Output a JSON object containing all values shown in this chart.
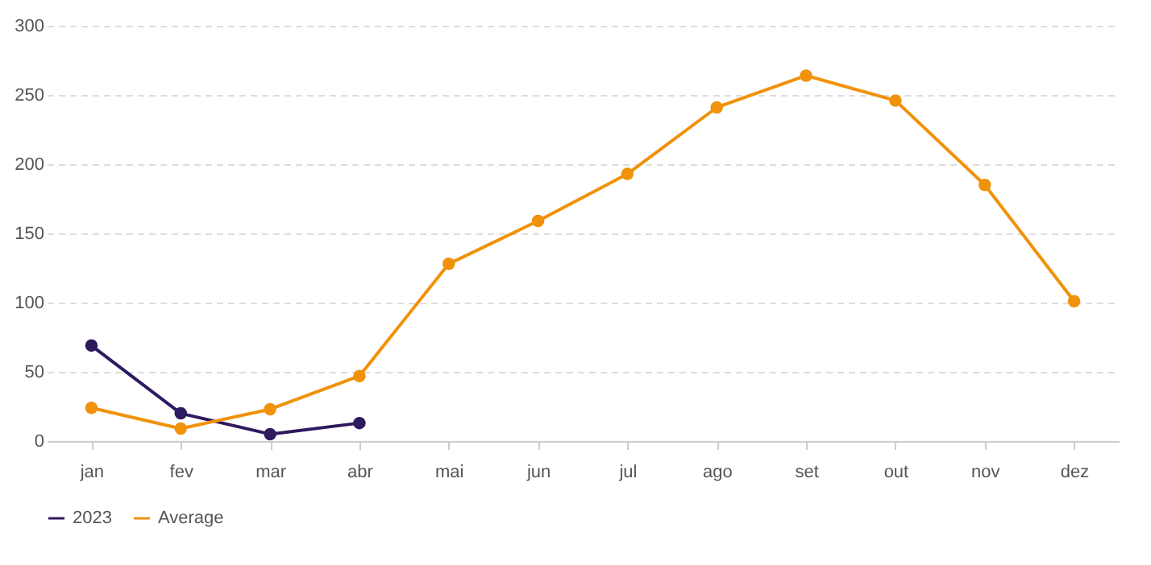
{
  "chart_data": {
    "type": "line",
    "categories": [
      "jan",
      "fev",
      "mar",
      "abr",
      "mai",
      "jun",
      "jul",
      "ago",
      "set",
      "out",
      "nov",
      "dez"
    ],
    "series": [
      {
        "name": "2023",
        "color": "#2e1a5e",
        "values": [
          69,
          20,
          5,
          13,
          null,
          null,
          null,
          null,
          null,
          null,
          null,
          null
        ]
      },
      {
        "name": "Average",
        "color": "#f0920a",
        "values": [
          24,
          9,
          23,
          47,
          128,
          159,
          193,
          241,
          264,
          246,
          185,
          101
        ]
      }
    ],
    "ylim": [
      0,
      300
    ],
    "yticks": [
      0,
      50,
      100,
      150,
      200,
      250,
      300
    ],
    "grid": "y",
    "legend": "bottom",
    "marker": "circle",
    "line_style": "solid"
  }
}
